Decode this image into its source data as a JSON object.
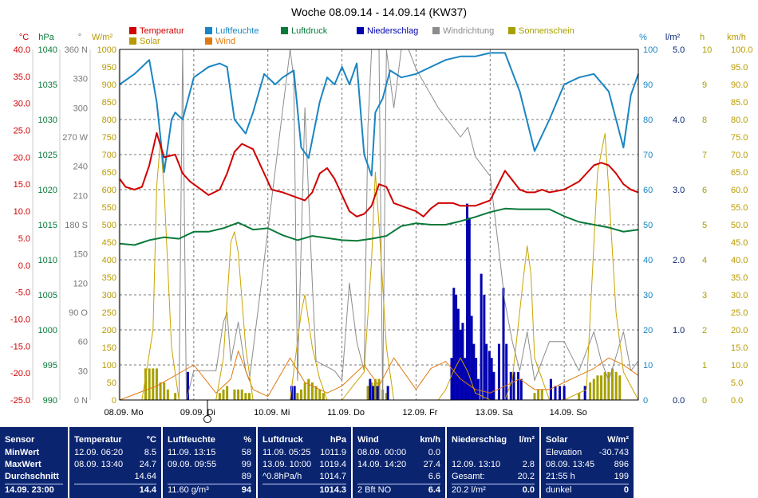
{
  "chart_data": {
    "type": "line",
    "title": "Woche 08.09.14 - 14.09.14 (KW37)",
    "x_ticks": [
      "08.09. Mo",
      "09.09. Di",
      "10.09. Mi",
      "11.09. Do",
      "12.09. Fr",
      "13.09. Sa",
      "14.09. So"
    ],
    "legend": [
      {
        "name": "Temperatur",
        "color": "#d00000"
      },
      {
        "name": "Luftfeuchte",
        "color": "#1a85c2"
      },
      {
        "name": "Luftdruck",
        "color": "#0a7a3a"
      },
      {
        "name": "Niederschlag",
        "color": "#0000b0"
      },
      {
        "name": "Windrichtung",
        "color": "#8c8c8c"
      },
      {
        "name": "Sonnenschein",
        "color": "#a6a000"
      },
      {
        "name": "Solar",
        "color": "#b89a00"
      },
      {
        "name": "Wind",
        "color": "#e07a10"
      }
    ],
    "axes": [
      {
        "name": "temperature",
        "unit": "°C",
        "color": "#d00000",
        "ticks": [
          "40.0",
          "35.0",
          "30.0",
          "25.0",
          "20.0",
          "15.0",
          "10.0",
          "5.0",
          "0.0",
          "-5.0",
          "-10.0",
          "-15.0",
          "-20.0",
          "-25.0"
        ],
        "range": [
          -25,
          40
        ]
      },
      {
        "name": "pressure",
        "unit": "hPa",
        "color": "#0a7a3a",
        "ticks": [
          "1040",
          "1035",
          "1030",
          "1025",
          "1020",
          "1015",
          "1010",
          "1005",
          "1000",
          "995",
          "990"
        ],
        "range": [
          990,
          1040
        ]
      },
      {
        "name": "wind_direction",
        "unit": "°",
        "color": "#777777",
        "ticks": [
          "360 N",
          "330",
          "300",
          "270 W",
          "240",
          "210",
          "180 S",
          "150",
          "120",
          "90 O",
          "60",
          "30",
          "0 N"
        ],
        "range": [
          0,
          360
        ]
      },
      {
        "name": "solar",
        "unit": "W/m²",
        "color": "#b89a00",
        "ticks": [
          "1000",
          "950",
          "900",
          "850",
          "800",
          "750",
          "700",
          "650",
          "600",
          "550",
          "500",
          "450",
          "400",
          "350",
          "300",
          "250",
          "200",
          "150",
          "100",
          "50",
          "0"
        ],
        "range": [
          0,
          1000
        ]
      },
      {
        "name": "humidity",
        "unit": "%",
        "color": "#1a85c2",
        "ticks": [
          "100",
          "90",
          "80",
          "70",
          "60",
          "50",
          "40",
          "30",
          "20",
          "10",
          "0"
        ],
        "range": [
          0,
          100
        ]
      },
      {
        "name": "rain",
        "unit": "l/m²",
        "color": "#0a2470",
        "ticks": [
          "5.0",
          "4.0",
          "3.0",
          "2.0",
          "1.0",
          "0.0"
        ],
        "range": [
          0,
          5
        ]
      },
      {
        "name": "sunshine",
        "unit": "h",
        "color": "#a6a000",
        "ticks": [
          "10",
          "9",
          "8",
          "7",
          "6",
          "5",
          "4",
          "3",
          "2",
          "1",
          "0"
        ],
        "range": [
          0,
          10
        ]
      },
      {
        "name": "wind",
        "unit": "km/h",
        "color": "#b89a00",
        "ticks": [
          "100.0",
          "95.0",
          "90.0",
          "85.0",
          "80.0",
          "75.0",
          "70.0",
          "65.0",
          "60.0",
          "55.0",
          "50.0",
          "45.0",
          "40.0",
          "35.0",
          "30.0",
          "25.0",
          "20.0",
          "15.0",
          "10.0",
          "5.0",
          "0.0"
        ],
        "range": [
          0,
          100
        ]
      }
    ],
    "series": [
      {
        "name": "Temperatur",
        "axis": "temperature",
        "x": [
          0,
          0.08,
          0.2,
          0.3,
          0.4,
          0.5,
          0.6,
          0.75,
          0.85,
          0.95,
          1.05,
          1.2,
          1.35,
          1.45,
          1.55,
          1.65,
          1.8,
          1.95,
          2.05,
          2.2,
          2.4,
          2.5,
          2.6,
          2.7,
          2.8,
          2.9,
          3.0,
          3.1,
          3.2,
          3.3,
          3.4,
          3.5,
          3.6,
          3.7,
          3.8,
          3.9,
          4.0,
          4.1,
          4.2,
          4.3,
          4.4,
          4.5,
          4.6,
          4.7,
          4.8,
          5.0,
          5.2,
          5.4,
          5.5,
          5.6,
          5.7,
          5.8,
          6.0,
          6.2,
          6.4,
          6.5,
          6.6,
          6.7,
          6.8,
          6.9,
          7.0
        ],
        "y": [
          16,
          14.5,
          14,
          14.5,
          18.5,
          24.5,
          20,
          20.5,
          17,
          15.5,
          14.5,
          13,
          14,
          17,
          21,
          22.5,
          21.5,
          17,
          14,
          13.5,
          12.5,
          12,
          13.5,
          17,
          18,
          16,
          13,
          10,
          9,
          9.5,
          11,
          15,
          14.5,
          11.5,
          11,
          10.5,
          10,
          9,
          10.5,
          11.5,
          11.5,
          11.5,
          11,
          11,
          11,
          12,
          17.5,
          14,
          13.5,
          13.5,
          14,
          13.5,
          14,
          15.5,
          18.5,
          19,
          18.5,
          17,
          15,
          14,
          13.5
        ]
      },
      {
        "name": "Luftfeuchte",
        "axis": "humidity",
        "x": [
          0,
          0.2,
          0.3,
          0.4,
          0.5,
          0.6,
          0.7,
          0.75,
          0.85,
          1.0,
          1.2,
          1.35,
          1.45,
          1.55,
          1.7,
          1.8,
          1.95,
          2.1,
          2.2,
          2.35,
          2.45,
          2.55,
          2.7,
          2.8,
          2.9,
          3.0,
          3.1,
          3.2,
          3.3,
          3.4,
          3.45,
          3.55,
          3.65,
          3.8,
          4.0,
          4.2,
          4.4,
          4.6,
          4.8,
          5.0,
          5.2,
          5.4,
          5.6,
          5.8,
          6.0,
          6.2,
          6.4,
          6.6,
          6.8,
          6.9,
          7.0
        ],
        "y": [
          90,
          93,
          95,
          97,
          85,
          65,
          80,
          82,
          80,
          92,
          95,
          96,
          95,
          80,
          76,
          82,
          93,
          90,
          92,
          94,
          72,
          69,
          85,
          92,
          90,
          95,
          90,
          96,
          70,
          64,
          82,
          86,
          94,
          92,
          93,
          95,
          97,
          98,
          98,
          99,
          99,
          88,
          71,
          80,
          90,
          92,
          93,
          88,
          72,
          87,
          93
        ]
      },
      {
        "name": "Luftdruck",
        "axis": "pressure",
        "x": [
          0,
          0.2,
          0.4,
          0.6,
          0.8,
          1.0,
          1.2,
          1.4,
          1.6,
          1.8,
          2.0,
          2.2,
          2.4,
          2.6,
          2.8,
          3.0,
          3.2,
          3.4,
          3.6,
          3.8,
          4.0,
          4.2,
          4.4,
          4.6,
          4.8,
          5.0,
          5.2,
          5.4,
          5.6,
          5.8,
          6.0,
          6.2,
          6.4,
          6.6,
          6.8,
          7.0
        ],
        "y": [
          1012.3,
          1012.1,
          1012.8,
          1013.2,
          1013.0,
          1014.0,
          1014.0,
          1014.5,
          1015.3,
          1014.3,
          1014.5,
          1013.5,
          1012.8,
          1013.4,
          1013.1,
          1012.8,
          1012.7,
          1013.0,
          1013.4,
          1014.8,
          1015.2,
          1015.0,
          1015.0,
          1015.5,
          1016.1,
          1016.8,
          1017.3,
          1017.2,
          1017.2,
          1017.2,
          1016.2,
          1015.4,
          1015.0,
          1014.6,
          1014.0,
          1014.3
        ]
      },
      {
        "name": "Solar",
        "axis": "solar",
        "x": [
          0,
          0.3,
          0.45,
          0.5,
          0.55,
          0.6,
          0.7,
          0.8,
          1.0,
          1.3,
          1.4,
          1.5,
          1.55,
          1.6,
          1.7,
          1.8,
          2.0,
          2.3,
          2.45,
          2.5,
          2.6,
          2.7,
          2.8,
          3.0,
          3.3,
          3.4,
          3.45,
          3.5,
          3.6,
          3.7,
          4.0,
          4.3,
          4.4,
          4.5,
          4.6,
          4.7,
          4.8,
          5.0,
          5.2,
          5.3,
          5.45,
          5.5,
          5.55,
          5.6,
          5.7,
          5.8,
          6.0,
          6.3,
          6.45,
          6.55,
          6.6,
          6.7,
          6.8,
          7.0
        ],
        "y": [
          0,
          0,
          200,
          610,
          740,
          600,
          150,
          0,
          0,
          0,
          120,
          450,
          480,
          420,
          150,
          0,
          0,
          0,
          250,
          300,
          150,
          60,
          0,
          0,
          80,
          400,
          650,
          500,
          150,
          0,
          0,
          0,
          30,
          80,
          120,
          80,
          20,
          0,
          0,
          60,
          350,
          440,
          360,
          120,
          60,
          0,
          0,
          30,
          650,
          760,
          600,
          250,
          80,
          0
        ]
      },
      {
        "name": "Wind",
        "axis": "wind",
        "x": [
          0,
          0.5,
          1,
          1.3,
          1.5,
          1.6,
          1.8,
          2,
          2.3,
          2.5,
          2.8,
          3,
          3.3,
          3.5,
          3.7,
          4,
          4.2,
          4.4,
          4.6,
          4.8,
          5,
          5.2,
          5.4,
          5.6,
          5.8,
          6,
          6.2,
          6.4,
          6.6,
          6.8,
          7
        ],
        "y": [
          0,
          4,
          10,
          2,
          6,
          14,
          3,
          1,
          12,
          5,
          2,
          4,
          10,
          4,
          12,
          3,
          9,
          11,
          6,
          3,
          2,
          4,
          6,
          3,
          3,
          5,
          7,
          9,
          12,
          10,
          7
        ]
      },
      {
        "name": "Windrichtung",
        "axis": "wind_direction",
        "x": [
          0,
          0.8,
          0.85,
          0.9,
          1.0,
          1.3,
          1.4,
          1.45,
          1.5,
          1.6,
          1.7,
          1.75,
          2.3,
          2.35,
          2.4,
          2.5,
          2.6,
          2.65,
          2.9,
          3.0,
          3.1,
          3.2,
          3.3,
          3.35,
          3.4,
          3.5,
          3.55,
          3.6,
          3.7,
          3.8,
          3.9,
          4.0,
          4.3,
          4.4,
          4.5,
          4.6,
          4.7,
          4.8,
          5.0,
          5.2,
          5.3,
          5.4,
          5.5,
          5.6,
          5.8,
          6.0,
          6.2,
          6.4,
          6.5,
          6.6,
          6.8,
          6.9,
          7.0
        ],
        "y": [
          0,
          0,
          360,
          0,
          30,
          30,
          80,
          90,
          40,
          80,
          30,
          20,
          360,
          330,
          20,
          300,
          120,
          40,
          30,
          20,
          120,
          60,
          30,
          280,
          360,
          360,
          0,
          360,
          300,
          360,
          360,
          340,
          300,
          290,
          280,
          270,
          280,
          250,
          230,
          100,
          60,
          30,
          70,
          20,
          60,
          60,
          30,
          70,
          40,
          20,
          70,
          30,
          40
        ]
      }
    ],
    "rain_bars": {
      "axis": "rain",
      "x": [
        0.92,
        2.32,
        2.36,
        3.38,
        3.42,
        3.48,
        3.62,
        4.48,
        4.51,
        4.54,
        4.57,
        4.6,
        4.63,
        4.66,
        4.69,
        4.72,
        4.75,
        4.78,
        4.81,
        4.84,
        4.88,
        4.92,
        4.95,
        4.99,
        5.02,
        5.05,
        5.12,
        5.18,
        5.22,
        5.28,
        5.32,
        5.38,
        5.42,
        5.82,
        5.88,
        5.94,
        6.0,
        6.28
      ],
      "y": [
        0.4,
        0.2,
        0.2,
        0.3,
        0.2,
        0.2,
        0.2,
        0.6,
        1.6,
        1.5,
        1.3,
        1.0,
        1.1,
        0.6,
        2.8,
        2.6,
        1.2,
        0.8,
        0.6,
        0.3,
        1.8,
        1.5,
        0.8,
        0.7,
        0.6,
        0.4,
        0.8,
        1.6,
        0.8,
        0.4,
        0.4,
        0.4,
        0.3,
        0.3,
        0.2,
        0.2,
        0.2,
        0.2
      ]
    },
    "sun_bars": {
      "axis": "sunshine",
      "x": [
        0.35,
        0.4,
        0.45,
        0.5,
        0.55,
        0.6,
        0.65,
        0.75,
        1.35,
        1.4,
        1.45,
        1.55,
        1.6,
        1.65,
        1.7,
        1.75,
        2.4,
        2.45,
        2.5,
        2.55,
        2.6,
        2.65,
        2.7,
        2.75,
        3.35,
        3.4,
        3.45,
        3.5,
        3.55,
        3.6,
        5.6,
        5.65,
        5.7,
        6.2,
        6.35,
        6.4,
        6.45,
        6.5,
        6.55,
        6.6,
        6.65,
        6.7,
        6.75
      ],
      "y": [
        0.9,
        0.9,
        0.9,
        0.9,
        0.5,
        0.5,
        0.3,
        0.2,
        0.2,
        0.3,
        0.4,
        0.3,
        0.3,
        0.3,
        0.2,
        0.2,
        0.2,
        0.3,
        0.5,
        0.6,
        0.5,
        0.4,
        0.3,
        0.2,
        0.4,
        0.5,
        0.6,
        0.6,
        0.3,
        0.2,
        0.2,
        0.3,
        0.3,
        0.2,
        0.5,
        0.6,
        0.7,
        0.7,
        0.8,
        0.8,
        0.9,
        0.8,
        0.7
      ]
    }
  },
  "table": {
    "sensor": {
      "header": "Sensor",
      "rows": [
        "MinWert",
        "MaxWert",
        "Durchschnitt",
        "14.09. 23:00"
      ]
    },
    "temperatur": {
      "header": "Temperatur",
      "unit": "°C",
      "rows": [
        [
          "12.09.  06:20",
          "8.5"
        ],
        [
          "08.09.  13:40",
          "24.7"
        ],
        [
          "",
          "14.64"
        ],
        [
          "",
          "14.4"
        ]
      ]
    },
    "luftfeuchte": {
      "header": "Luftfeuchte",
      "unit": "%",
      "rows": [
        [
          "11.09.  13:15",
          "58"
        ],
        [
          "09.09.  09:55",
          "99"
        ],
        [
          "",
          "89"
        ],
        [
          "11.60 g/m³",
          "94"
        ]
      ]
    },
    "luftdruck": {
      "header": "Luftdruck",
      "unit": "hPa",
      "rows": [
        [
          "11.09.  05:25",
          "1011.9"
        ],
        [
          "13.09.  10:00",
          "1019.4"
        ],
        [
          "^0.8hPa/h",
          "1014.7"
        ],
        [
          "",
          "1014.3"
        ]
      ]
    },
    "wind": {
      "header": "Wind",
      "unit": "km/h",
      "rows": [
        [
          "08.09.  00:00",
          "0.0"
        ],
        [
          "14.09.  14:20",
          "27.4"
        ],
        [
          "",
          "6.6"
        ],
        [
          "2 Bft NO",
          "6.4"
        ]
      ]
    },
    "niederschlag": {
      "header": "Niederschlag",
      "unit": "l/m²",
      "rows": [
        [
          "",
          ""
        ],
        [
          "12.09.  13:10",
          "2.8"
        ],
        [
          "Gesamt:",
          "20.2"
        ],
        [
          "20.2 l/m²",
          "0.0"
        ]
      ]
    },
    "solar": {
      "header": "Solar",
      "unit": "W/m²",
      "rows": [
        [
          "Elevation",
          "-30.743"
        ],
        [
          "08.09.  13:45",
          "896"
        ],
        [
          "21:55 h",
          "199"
        ],
        [
          "dunkel",
          "0"
        ]
      ]
    }
  }
}
